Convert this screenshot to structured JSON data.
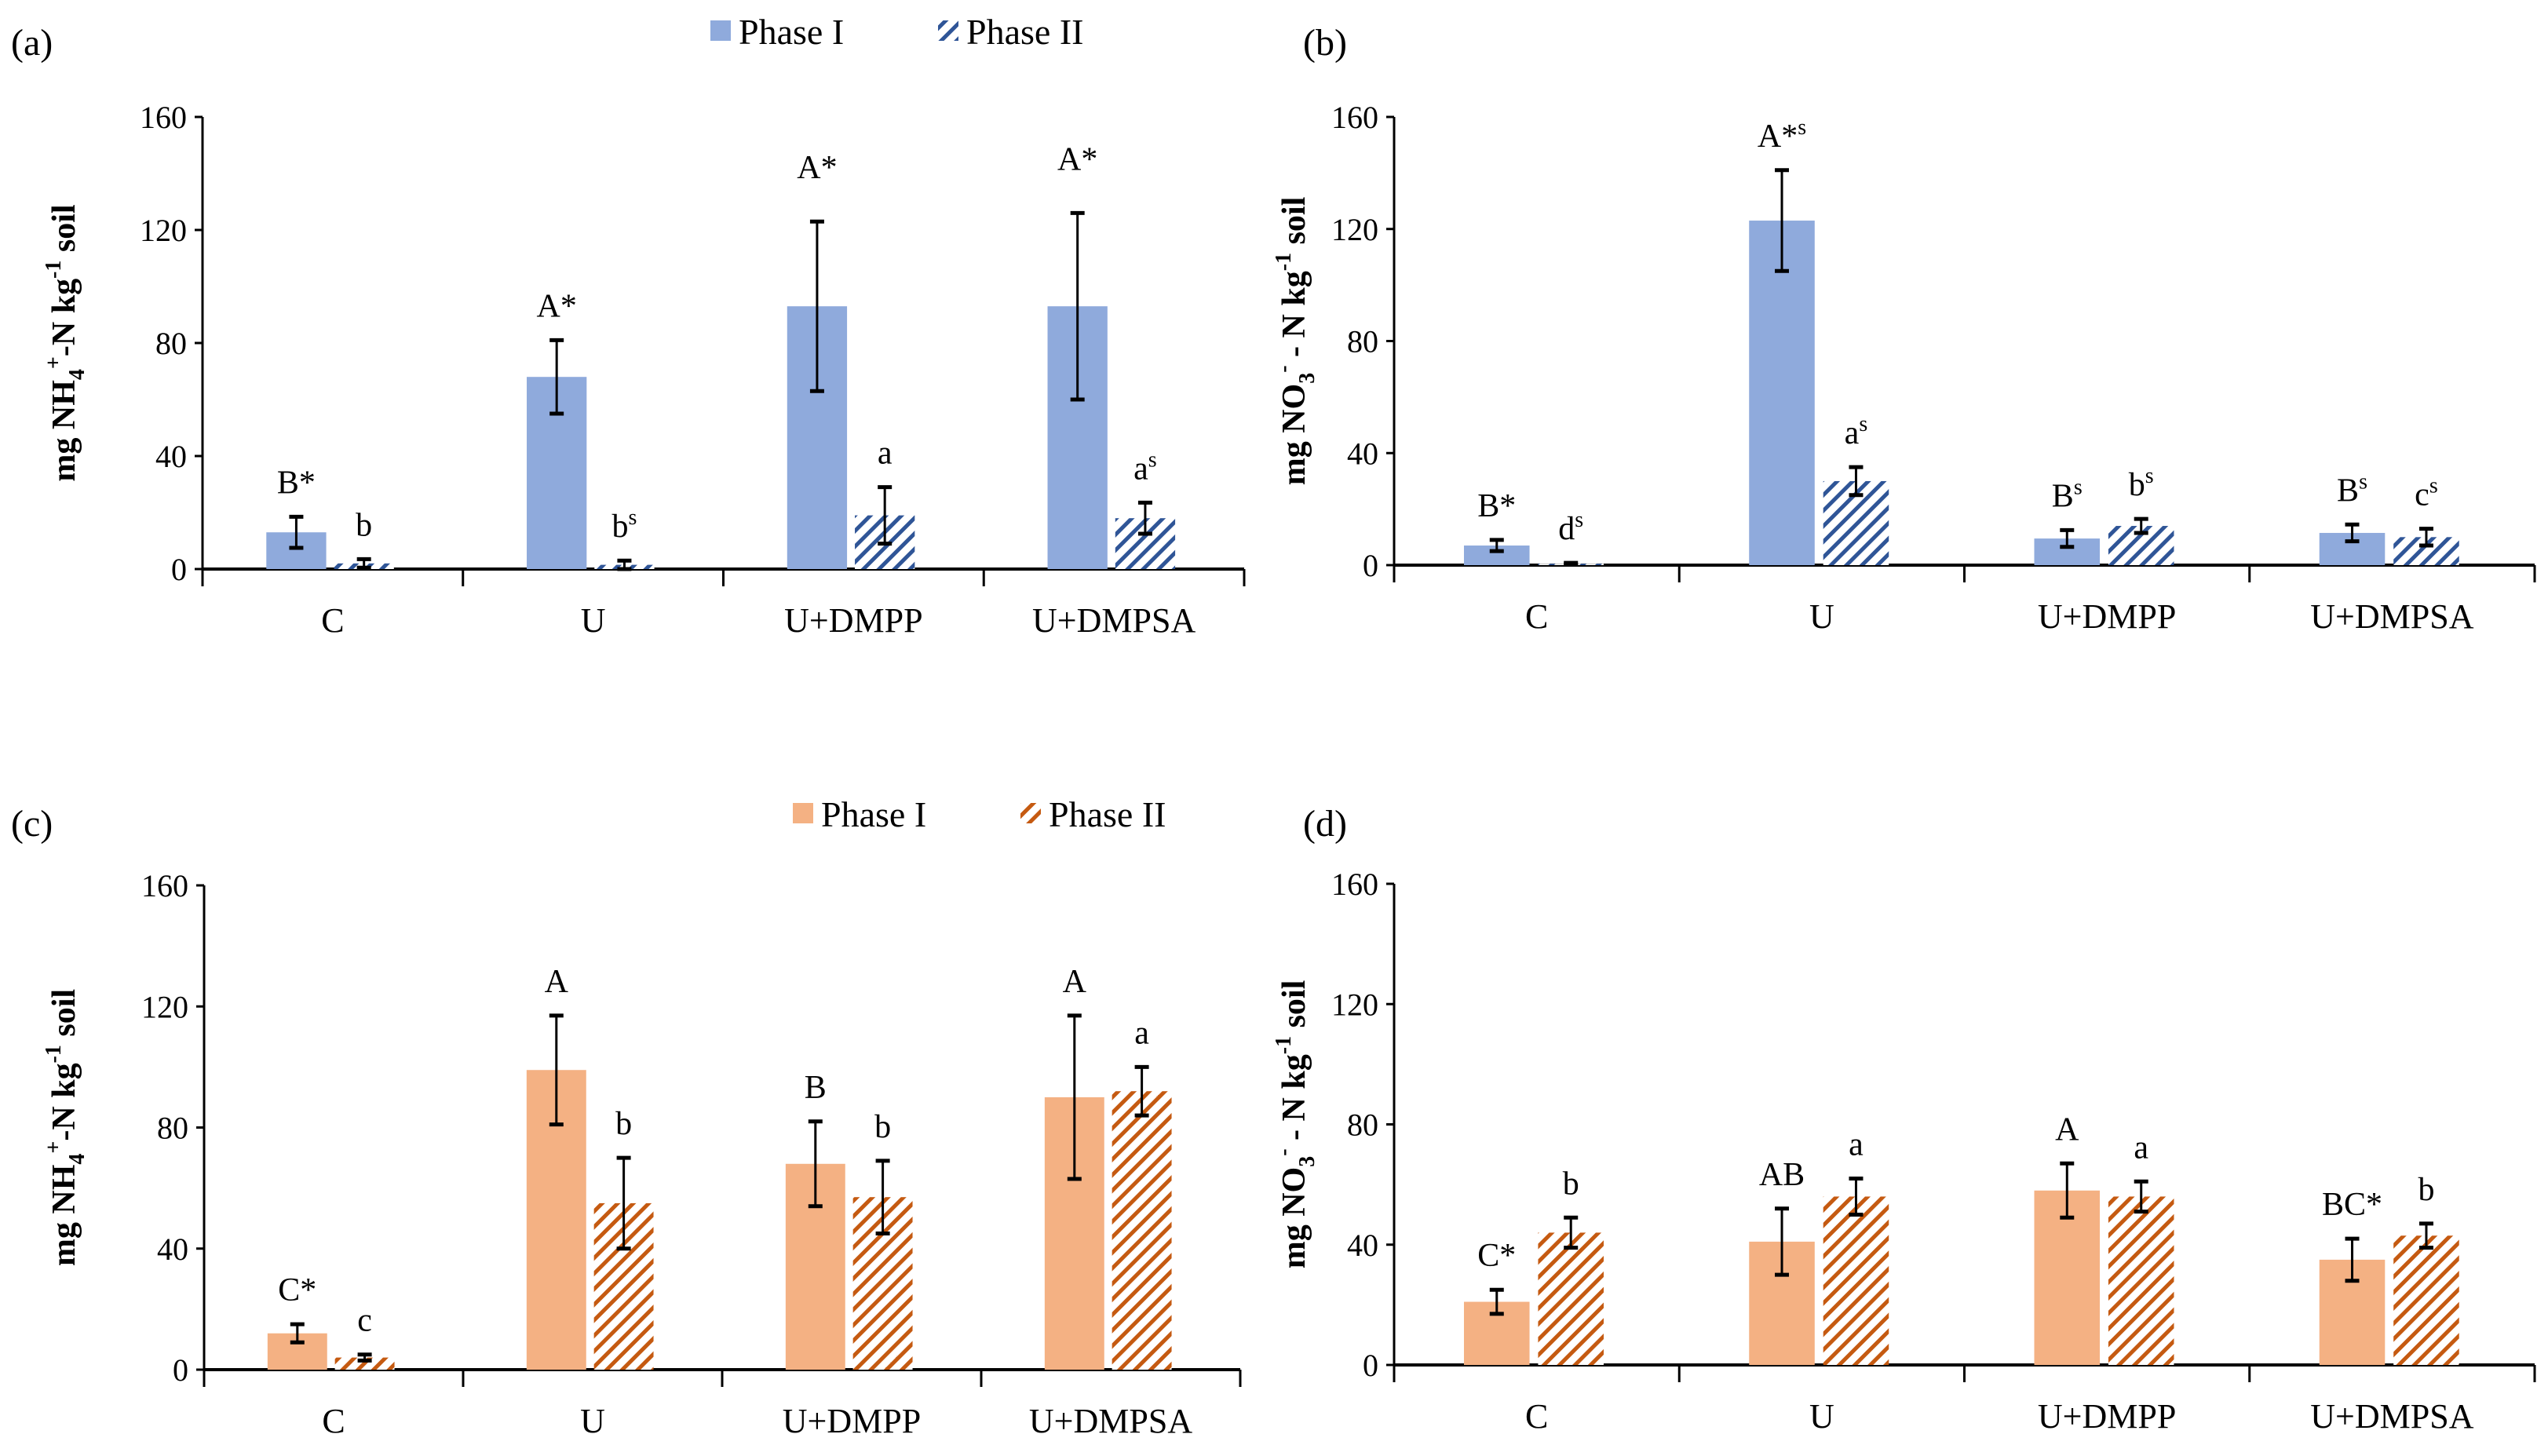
{
  "colors": {
    "blue": "#8faadc",
    "blue_hatch": "#2f5597",
    "orange": "#f4b183",
    "orange_hatch": "#c55a11"
  },
  "chart_data": [
    {
      "type": "bar",
      "panel_label": "(a)",
      "theme": "blue",
      "legend": true,
      "ylabel": [
        {
          "t": "mg NH"
        },
        {
          "t": "4",
          "sub": true
        },
        {
          "t": "+",
          "sup": true
        },
        {
          "t": "-N kg"
        },
        {
          "t": "-1",
          "sup": true
        },
        {
          "t": " soil"
        }
      ],
      "ylim": [
        0,
        160
      ],
      "yticks": [
        "0",
        "40",
        "80",
        "120",
        "160"
      ],
      "categories": [
        "C",
        "U",
        "U+DMPP",
        "U+DMPSA"
      ],
      "series": [
        {
          "name": "Phase I",
          "values": [
            13,
            68,
            93,
            93
          ],
          "errors": [
            5.5,
            13,
            30,
            33
          ],
          "labels": [
            {
              "m": "B*",
              "s": ""
            },
            {
              "m": "A*",
              "s": ""
            },
            {
              "m": "A*",
              "s": ""
            },
            {
              "m": "A*",
              "s": ""
            }
          ]
        },
        {
          "name": "Phase II",
          "values": [
            2,
            1.5,
            19,
            18
          ],
          "errors": [
            1.5,
            1.5,
            10,
            5.5
          ],
          "labels": [
            {
              "m": "b",
              "s": ""
            },
            {
              "m": "b",
              "s": "s"
            },
            {
              "m": "a",
              "s": ""
            },
            {
              "m": "a",
              "s": "s"
            }
          ]
        }
      ]
    },
    {
      "type": "bar",
      "panel_label": "(b)",
      "theme": "blue",
      "legend": false,
      "ylabel": [
        {
          "t": "mg NO"
        },
        {
          "t": "3",
          "sub": true
        },
        {
          "t": "-",
          "sup": true
        },
        {
          "t": " - N kg"
        },
        {
          "t": "-1",
          "sup": true
        },
        {
          "t": " soil"
        }
      ],
      "ylim": [
        0,
        160
      ],
      "yticks": [
        "0",
        "40",
        "80",
        "120",
        "160"
      ],
      "categories": [
        "C",
        "U",
        "U+DMPP",
        "U+DMPSA"
      ],
      "series": [
        {
          "name": "Phase I",
          "values": [
            7,
            123,
            9.5,
            11.5
          ],
          "errors": [
            2,
            18,
            3,
            3
          ],
          "labels": [
            {
              "m": "B*",
              "s": ""
            },
            {
              "m": "A*",
              "s": "s"
            },
            {
              "m": "B",
              "s": "s"
            },
            {
              "m": "B",
              "s": "s"
            }
          ]
        },
        {
          "name": "Phase II",
          "values": [
            0.5,
            30,
            14,
            10
          ],
          "errors": [
            0.3,
            5,
            2.5,
            3
          ],
          "labels": [
            {
              "m": "d",
              "s": "s"
            },
            {
              "m": "a",
              "s": "s"
            },
            {
              "m": "b",
              "s": "s"
            },
            {
              "m": "c",
              "s": "s"
            }
          ]
        }
      ]
    },
    {
      "type": "bar",
      "panel_label": "(c)",
      "theme": "orange",
      "legend": true,
      "ylabel": [
        {
          "t": "mg NH"
        },
        {
          "t": "4",
          "sub": true
        },
        {
          "t": "+",
          "sup": true
        },
        {
          "t": "-N kg"
        },
        {
          "t": "-1",
          "sup": true
        },
        {
          "t": " soil"
        }
      ],
      "ylim": [
        0,
        160
      ],
      "yticks": [
        "0",
        "40",
        "80",
        "120",
        "160"
      ],
      "categories": [
        "C",
        "U",
        "U+DMPP",
        "U+DMPSA"
      ],
      "series": [
        {
          "name": "Phase I",
          "values": [
            12,
            99,
            68,
            90
          ],
          "errors": [
            3,
            18,
            14,
            27
          ],
          "labels": [
            {
              "m": "C*",
              "s": ""
            },
            {
              "m": "A",
              "s": ""
            },
            {
              "m": "B",
              "s": ""
            },
            {
              "m": "A",
              "s": ""
            }
          ]
        },
        {
          "name": "Phase II",
          "values": [
            4,
            55,
            57,
            92
          ],
          "errors": [
            1,
            15,
            12,
            8
          ],
          "labels": [
            {
              "m": "c",
              "s": ""
            },
            {
              "m": "b",
              "s": ""
            },
            {
              "m": "b",
              "s": ""
            },
            {
              "m": "a",
              "s": ""
            }
          ]
        }
      ]
    },
    {
      "type": "bar",
      "panel_label": "(d)",
      "theme": "orange",
      "legend": false,
      "ylabel": [
        {
          "t": "mg NO"
        },
        {
          "t": "3",
          "sub": true
        },
        {
          "t": "-",
          "sup": true
        },
        {
          "t": " - N kg"
        },
        {
          "t": "-1",
          "sup": true
        },
        {
          "t": " soil"
        }
      ],
      "ylim": [
        0,
        160
      ],
      "yticks": [
        "0",
        "40",
        "80",
        "120",
        "160"
      ],
      "categories": [
        "C",
        "U",
        "U+DMPP",
        "U+DMPSA"
      ],
      "series": [
        {
          "name": "Phase I",
          "values": [
            21,
            41,
            58,
            35
          ],
          "errors": [
            4,
            11,
            9,
            7
          ],
          "labels": [
            {
              "m": "C*",
              "s": ""
            },
            {
              "m": "AB",
              "s": ""
            },
            {
              "m": "A",
              "s": ""
            },
            {
              "m": "BC*",
              "s": ""
            }
          ]
        },
        {
          "name": "Phase II",
          "values": [
            44,
            56,
            56,
            43
          ],
          "errors": [
            5,
            6,
            5,
            4
          ],
          "labels": [
            {
              "m": "b",
              "s": ""
            },
            {
              "m": "a",
              "s": ""
            },
            {
              "m": "a",
              "s": ""
            },
            {
              "m": "b",
              "s": ""
            }
          ]
        }
      ]
    }
  ]
}
